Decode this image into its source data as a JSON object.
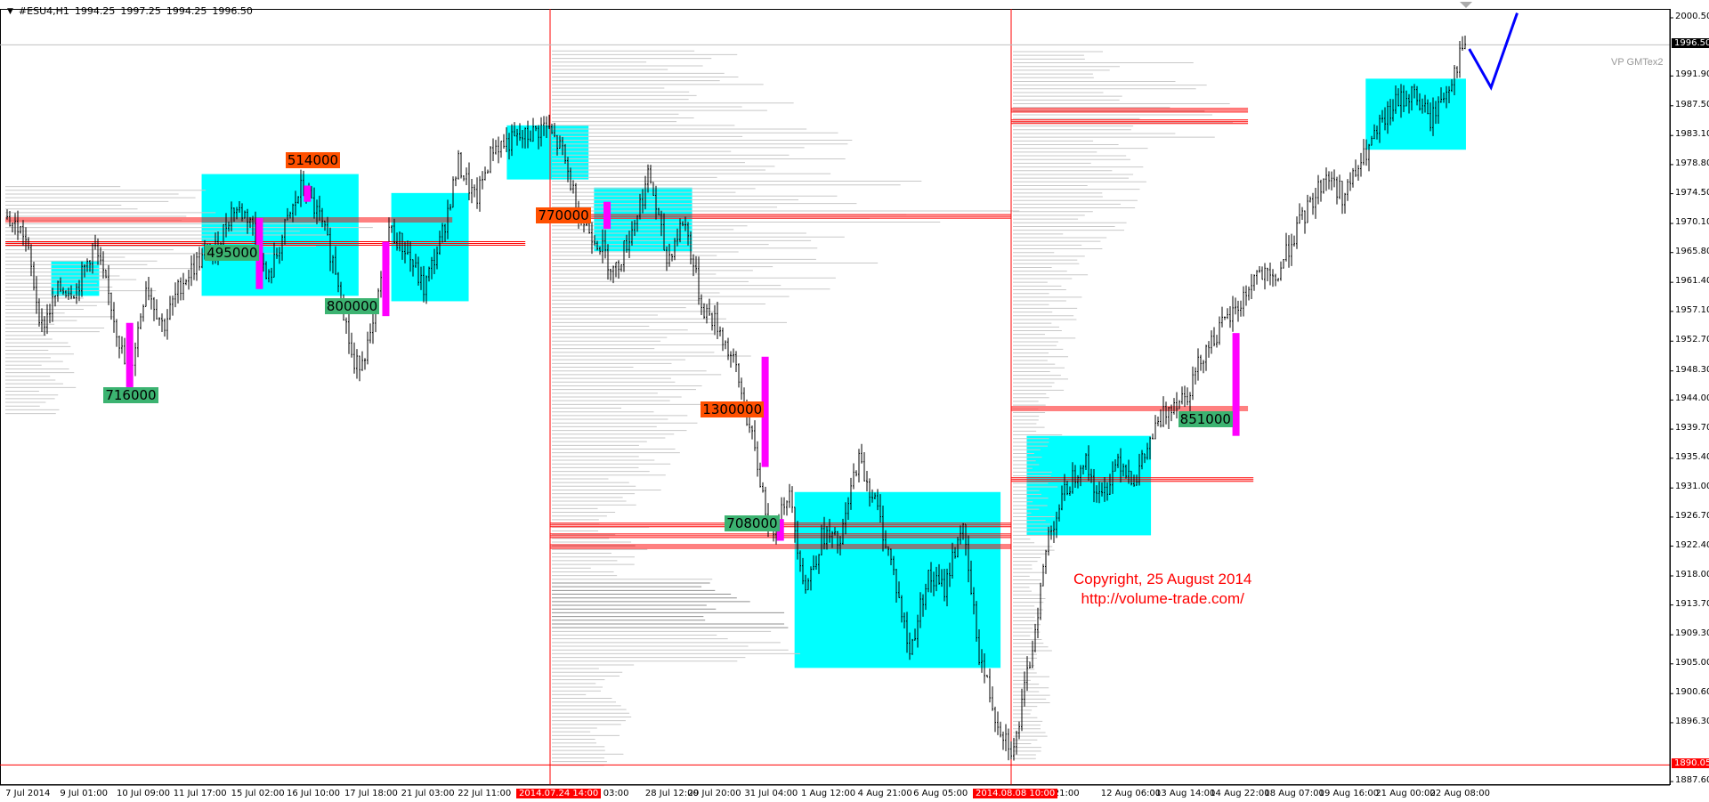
{
  "header": {
    "symbol": "#ESU4,H1",
    "open": "1994.25",
    "high": "1997.25",
    "low": "1994.25",
    "close": "1996.50"
  },
  "indicator_label": "VP GMTex2",
  "copyright": {
    "line1": "Copyright, 25 August 2014",
    "line2": "http://volume-trade.com/"
  },
  "colors": {
    "box": "#00ffff",
    "poc": "#ff0000",
    "spike": "#ff00ff",
    "sell_label": "#ff5000",
    "buy_label": "#3cb371",
    "profile": "#c8c8c8",
    "forecast": "#0000ff",
    "candle": "#000000"
  },
  "chart_data": {
    "type": "bar",
    "symbol": "#ESU4",
    "timeframe": "H1",
    "ylim": [
      1887.6,
      2002.0
    ],
    "y_ticks": [
      "2000.50",
      "1991.90",
      "1987.50",
      "1983.10",
      "1978.80",
      "1974.50",
      "1970.10",
      "1965.80",
      "1961.40",
      "1957.10",
      "1952.70",
      "1948.30",
      "1944.00",
      "1939.70",
      "1935.40",
      "1931.00",
      "1926.70",
      "1922.40",
      "1918.00",
      "1913.70",
      "1909.30",
      "1905.00",
      "1900.60",
      "1896.30",
      "1887.60"
    ],
    "current_price": "1996.50",
    "marked_low": "1890.05",
    "x_ticks": [
      "7 Jul 2014",
      "9 Jul 01:00",
      "10 Jul 09:00",
      "11 Jul 17:00",
      "15 Jul 02:00",
      "16 Jul 10:00",
      "17 Jul 18:00",
      "21 Jul 03:00",
      "22 Jul 11:00",
      "Jul 03:00",
      "28 Jul 12:00",
      "29 Jul 20:00",
      "31 Jul 04:00",
      "1 Aug 12:00",
      "4 Aug 21:00",
      "6 Aug 05:00",
      "g 21:00",
      "12 Aug 06:00",
      "13 Aug 14:00",
      "14 Aug 22:00",
      "18 Aug 07:00",
      "19 Aug 16:00",
      "21 Aug 00:00",
      "22 Aug 08:00"
    ],
    "period_separators": [
      "2014.07.24 14:00",
      "2014.08.08 10:00"
    ],
    "approx_close_path": [
      1970.9,
      1968.5,
      1954.8,
      1960.4,
      1960.4,
      1966.9,
      1958.0,
      1946.7,
      1961.2,
      1954.8,
      1961.2,
      1964.5,
      1966.1,
      1972.5,
      1970.9,
      1961.2,
      1969.3,
      1975.7,
      1970.9,
      1962.8,
      1948.4,
      1953.2,
      1969.3,
      1966.1,
      1960.4,
      1967.7,
      1979.0,
      1973.3,
      1981.4,
      1982.2,
      1983.0,
      1984.6,
      1980.6,
      1970.9,
      1967.7,
      1962.8,
      1969.3,
      1977.4,
      1964.5,
      1970.9,
      1958.0,
      1954.8,
      1948.4,
      1937.1,
      1924.2,
      1930.6,
      1916.1,
      1924.2,
      1922.6,
      1935.5,
      1929.0,
      1919.4,
      1906.5,
      1917.8,
      1916.1,
      1925.8,
      1906.5,
      1896.8,
      1892.0,
      1906.5,
      1924.2,
      1930.6,
      1935.5,
      1929.0,
      1935.5,
      1932.2,
      1938.7,
      1943.5,
      1945.1,
      1951.6,
      1954.8,
      1958.0,
      1962.8,
      1961.2,
      1967.7,
      1972.5,
      1977.4,
      1974.1,
      1979.0,
      1983.8,
      1987.8,
      1989.4,
      1985.4,
      1990.2,
      1996.7
    ],
    "balance_zones": [
      [
        1959.4,
        1964.5
      ],
      [
        1959.4,
        1977.4
      ],
      [
        1958.6,
        1974.6
      ],
      [
        1976.6,
        1984.6
      ],
      [
        1966.0,
        1975.4
      ],
      [
        1904.4,
        1930.4
      ],
      [
        1924.0,
        1938.7
      ],
      [
        1981.0,
        1991.5
      ]
    ],
    "poc_levels": [
      1970.9,
      1967.4,
      1971.4,
      1925.8,
      1924.2,
      1922.6,
      1987.1,
      1985.4,
      1943.0,
      1932.5
    ],
    "volume_spikes": [
      [
        1945.9,
        1955.4
      ],
      [
        1973.3,
        1975.7
      ],
      [
        1960.4,
        1970.9
      ],
      [
        1956.4,
        1967.4
      ],
      [
        1969.3,
        1973.3
      ],
      [
        1934.1,
        1950.4
      ],
      [
        1923.2,
        1926.4
      ],
      [
        1938.7,
        1953.9
      ]
    ],
    "volume_labels": [
      {
        "text": "514000",
        "side": "sell"
      },
      {
        "text": "495000",
        "side": "buy"
      },
      {
        "text": "800000",
        "side": "buy"
      },
      {
        "text": "716000",
        "side": "buy"
      },
      {
        "text": "770000",
        "side": "sell"
      },
      {
        "text": "1300000",
        "side": "sell"
      },
      {
        "text": "708000",
        "side": "buy"
      },
      {
        "text": "851000",
        "side": "buy"
      }
    ],
    "forecast_path": [
      1995.9,
      1990.2,
      2001.2
    ]
  }
}
